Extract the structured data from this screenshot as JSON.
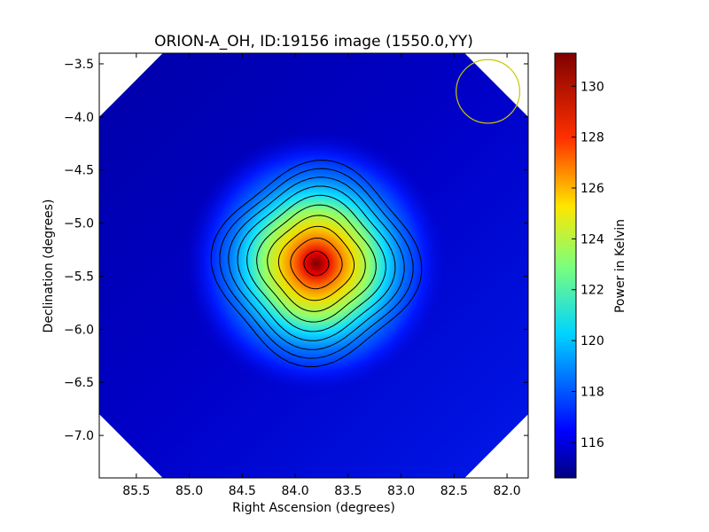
{
  "chart_data": {
    "type": "heatmap",
    "title": "ORION-A_OH, ID:19156 image (1550.0,YY)",
    "xlabel": "Right Ascension (degrees)",
    "ylabel": "Declination (degrees)",
    "xlim": [
      85.85,
      81.8
    ],
    "ylim": [
      -7.4,
      -3.4
    ],
    "x_reversed": true,
    "x_ticks": [
      "85.5",
      "85.0",
      "84.5",
      "84.0",
      "83.5",
      "83.0",
      "82.5",
      "82.0"
    ],
    "y_ticks": [
      "-3.5",
      "-4.0",
      "-4.5",
      "-5.0",
      "-5.5",
      "-6.0",
      "-6.5",
      "-7.0"
    ],
    "colorbar": {
      "label": "Power in Kelvin",
      "range": [
        114.6,
        131.3
      ],
      "ticks": [
        "116",
        "118",
        "120",
        "122",
        "124",
        "126",
        "128",
        "130"
      ],
      "colormap": "jet"
    },
    "source_peak": {
      "ra": 83.8,
      "dec": -5.38,
      "value": 131.0
    },
    "background_level": 115.0,
    "contour_levels": [
      116.5,
      118.0,
      119.5,
      121.0,
      122.5,
      124.0,
      125.5,
      127.0,
      128.5,
      130.0
    ],
    "contour_color": "#000000",
    "beam_marker": {
      "ra": 82.18,
      "dec": -3.76,
      "radius_deg": 0.3,
      "color": "#c8c800"
    },
    "grid": false
  }
}
